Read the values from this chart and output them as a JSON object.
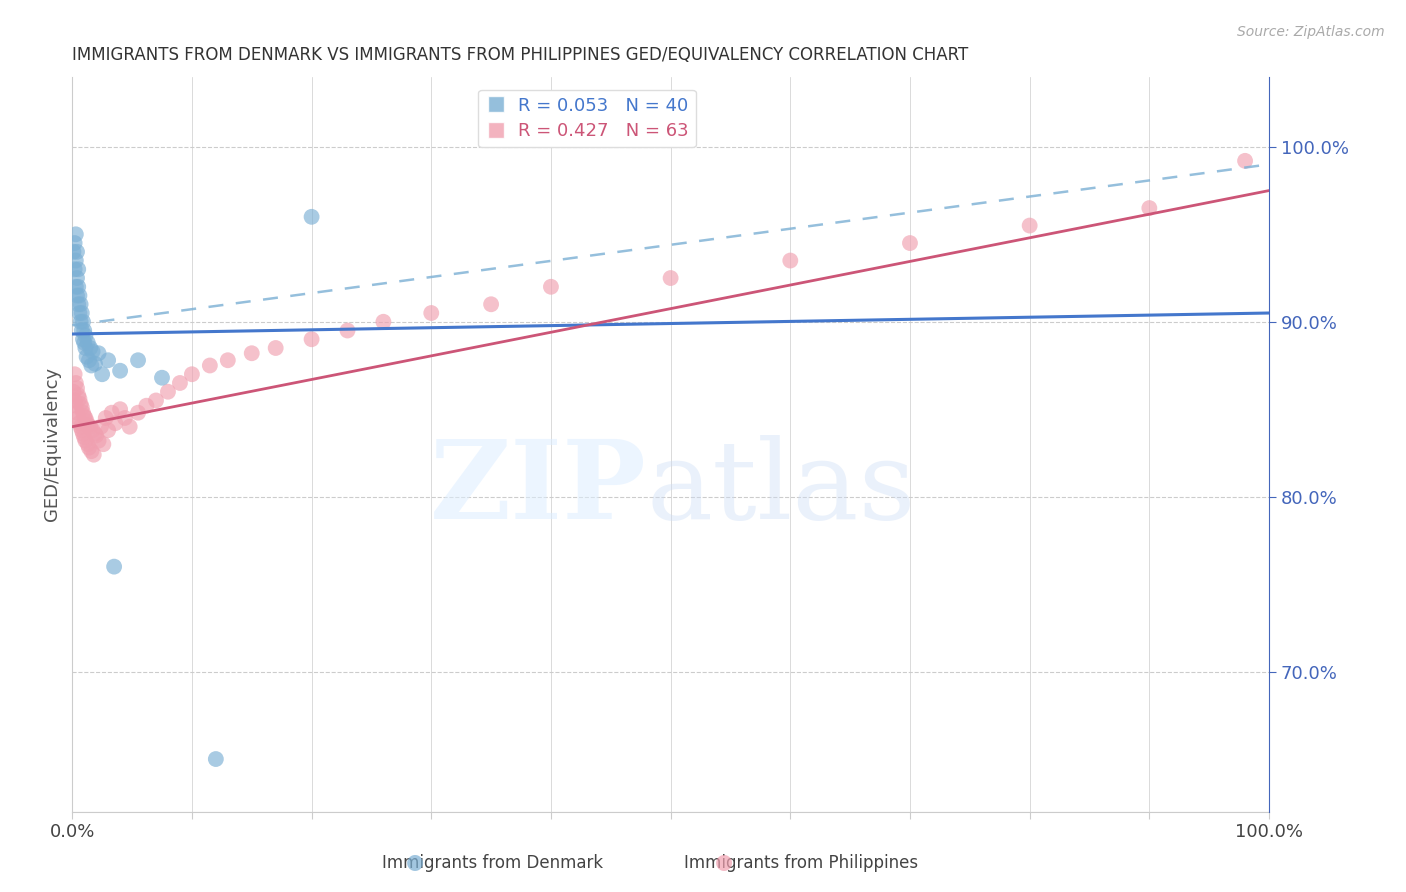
{
  "title": "IMMIGRANTS FROM DENMARK VS IMMIGRANTS FROM PHILIPPINES GED/EQUIVALENCY CORRELATION CHART",
  "source": "Source: ZipAtlas.com",
  "ylabel": "GED/Equivalency",
  "background_color": "#ffffff",
  "grid_color": "#cccccc",
  "axis_color": "#cccccc",
  "denmark_color": "#7bafd4",
  "denmark_line_color": "#4477cc",
  "denmark_dash_color": "#7bafd4",
  "philippines_color": "#f0a0b0",
  "philippines_line_color": "#cc5577",
  "right_axis_color": "#4466bb",
  "denmark_R": 0.053,
  "denmark_N": 40,
  "philippines_R": 0.427,
  "philippines_N": 63,
  "xlim": [
    0.0,
    1.0
  ],
  "ylim": [
    0.62,
    1.04
  ],
  "y_ticks_right": [
    0.7,
    0.8,
    0.9,
    1.0
  ],
  "y_tick_labels_right": [
    "70.0%",
    "80.0%",
    "90.0%",
    "100.0%"
  ],
  "denmark_scatter_x": [
    0.001,
    0.002,
    0.002,
    0.003,
    0.003,
    0.003,
    0.004,
    0.004,
    0.004,
    0.005,
    0.005,
    0.005,
    0.006,
    0.006,
    0.007,
    0.007,
    0.008,
    0.008,
    0.009,
    0.009,
    0.01,
    0.01,
    0.011,
    0.011,
    0.012,
    0.013,
    0.014,
    0.015,
    0.016,
    0.017,
    0.019,
    0.022,
    0.025,
    0.03,
    0.035,
    0.04,
    0.055,
    0.075,
    0.12,
    0.2
  ],
  "denmark_scatter_y": [
    0.94,
    0.93,
    0.945,
    0.92,
    0.935,
    0.95,
    0.915,
    0.925,
    0.94,
    0.91,
    0.92,
    0.93,
    0.905,
    0.915,
    0.9,
    0.91,
    0.895,
    0.905,
    0.89,
    0.9,
    0.888,
    0.895,
    0.885,
    0.892,
    0.88,
    0.888,
    0.878,
    0.885,
    0.875,
    0.883,
    0.876,
    0.882,
    0.87,
    0.878,
    0.76,
    0.872,
    0.878,
    0.868,
    0.65,
    0.96
  ],
  "philippines_scatter_x": [
    0.001,
    0.002,
    0.002,
    0.003,
    0.003,
    0.004,
    0.004,
    0.005,
    0.005,
    0.006,
    0.006,
    0.007,
    0.007,
    0.008,
    0.008,
    0.009,
    0.009,
    0.01,
    0.01,
    0.011,
    0.011,
    0.012,
    0.013,
    0.013,
    0.014,
    0.015,
    0.016,
    0.017,
    0.018,
    0.019,
    0.02,
    0.022,
    0.024,
    0.026,
    0.028,
    0.03,
    0.033,
    0.036,
    0.04,
    0.044,
    0.048,
    0.055,
    0.062,
    0.07,
    0.08,
    0.09,
    0.1,
    0.115,
    0.13,
    0.15,
    0.17,
    0.2,
    0.23,
    0.26,
    0.3,
    0.35,
    0.4,
    0.5,
    0.6,
    0.7,
    0.8,
    0.9,
    0.98
  ],
  "philippines_scatter_y": [
    0.86,
    0.855,
    0.87,
    0.852,
    0.865,
    0.848,
    0.862,
    0.845,
    0.858,
    0.842,
    0.856,
    0.84,
    0.853,
    0.838,
    0.851,
    0.836,
    0.848,
    0.834,
    0.846,
    0.832,
    0.845,
    0.843,
    0.83,
    0.841,
    0.828,
    0.84,
    0.826,
    0.838,
    0.824,
    0.836,
    0.835,
    0.832,
    0.84,
    0.83,
    0.845,
    0.838,
    0.848,
    0.842,
    0.85,
    0.845,
    0.84,
    0.848,
    0.852,
    0.855,
    0.86,
    0.865,
    0.87,
    0.875,
    0.878,
    0.882,
    0.885,
    0.89,
    0.895,
    0.9,
    0.905,
    0.91,
    0.92,
    0.925,
    0.935,
    0.945,
    0.955,
    0.965,
    0.992
  ]
}
